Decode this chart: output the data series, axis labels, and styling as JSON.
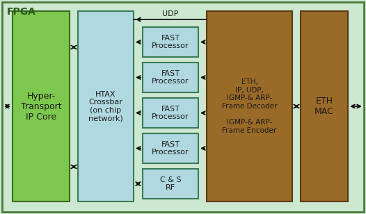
{
  "title": "FPGA",
  "bg_color": "#cde8d0",
  "bg_border": "#4a7a3a",
  "outer_bg": "#cde8d0",
  "hyper_color": "#7dc84e",
  "hyper_border": "#3a6a20",
  "hyper_label": "Hyper-\nTransport\nIP Core",
  "htax_color": "#b0d8e0",
  "htax_border": "#3a7a5a",
  "htax_label": "HTAX\nCrossbar\n(on chip\nnetwork)",
  "fast_color": "#b0d8e0",
  "fast_border": "#3a7a5a",
  "fast_label": "FAST\nProcessor",
  "cs_label": "C & S\nRF",
  "decoder_color": "#9a6a28",
  "decoder_border": "#5a3a10",
  "decoder_label": "ETH,\nIP, UDP,\nIGMP-& ARP-\nFrame Decoder\n\nIGMP-& ARP-\nFrame Encoder",
  "ethmac_color": "#9a6a28",
  "ethmac_border": "#5a3a10",
  "ethmac_label": "ETH\nMAC",
  "udp_label": "UDP",
  "arrow_color": "#111111",
  "text_color": "#1a1a1a"
}
